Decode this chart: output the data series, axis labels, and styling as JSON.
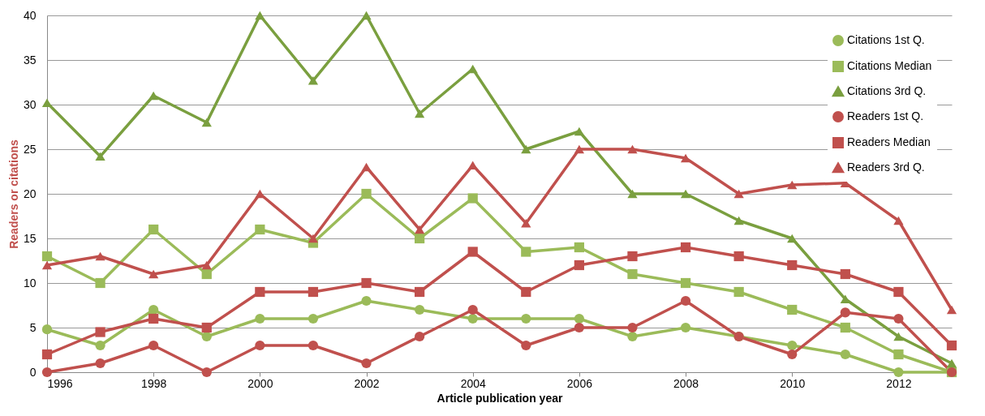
{
  "chart_data": {
    "type": "line",
    "xlabel": "Article publication year",
    "ylabel": "Readers or citations",
    "x": [
      1996,
      1997,
      1998,
      1999,
      2000,
      2001,
      2002,
      2003,
      2004,
      2005,
      2006,
      2007,
      2008,
      2009,
      2010,
      2011,
      2012,
      2013
    ],
    "xlim": [
      1996,
      2013
    ],
    "xticks": [
      1996,
      1998,
      2000,
      2002,
      2004,
      2006,
      2008,
      2010,
      2012
    ],
    "ylim": [
      0,
      40
    ],
    "yticks": [
      0,
      5,
      10,
      15,
      20,
      25,
      30,
      35,
      40
    ],
    "grid": "y",
    "legend": "top right",
    "series": [
      {
        "name": "Citations 1st Q.",
        "color": "#9bbb59",
        "marker": "circle",
        "values": [
          4.8,
          3,
          7,
          4,
          6,
          6,
          8,
          7,
          6,
          6,
          6,
          4,
          5,
          4,
          3,
          2,
          0,
          0
        ]
      },
      {
        "name": "Citations Median",
        "color": "#9bbb59",
        "marker": "square",
        "values": [
          13,
          10,
          16,
          11,
          16,
          14.5,
          20,
          15,
          19.5,
          13.5,
          14,
          11,
          10,
          9,
          7,
          5,
          2,
          0
        ]
      },
      {
        "name": "Citations 3rd Q.",
        "color": "#7a9f3f",
        "marker": "triangle",
        "values": [
          30.2,
          24.2,
          31,
          28,
          40,
          32.7,
          40,
          29,
          34,
          25,
          27,
          20,
          20,
          17,
          15,
          8.2,
          4,
          1
        ]
      },
      {
        "name": "Readers 1st Q.",
        "color": "#c0504d",
        "marker": "circle",
        "values": [
          0,
          1,
          3,
          0,
          3,
          3,
          1,
          4,
          7,
          3,
          5,
          5,
          8,
          4,
          2,
          6.7,
          6,
          0
        ]
      },
      {
        "name": "Readers Median",
        "color": "#c0504d",
        "marker": "square",
        "values": [
          2,
          4.5,
          6,
          5,
          9,
          9,
          10,
          9,
          13.5,
          9,
          12,
          13,
          14,
          13,
          12,
          11,
          9,
          3
        ]
      },
      {
        "name": "Readers 3rd Q.",
        "color": "#c0504d",
        "marker": "triangle",
        "values": [
          12,
          13,
          11,
          12,
          20,
          15,
          23,
          16,
          23.2,
          16.7,
          25,
          25,
          24,
          20,
          21,
          21.2,
          17,
          7
        ]
      }
    ]
  }
}
